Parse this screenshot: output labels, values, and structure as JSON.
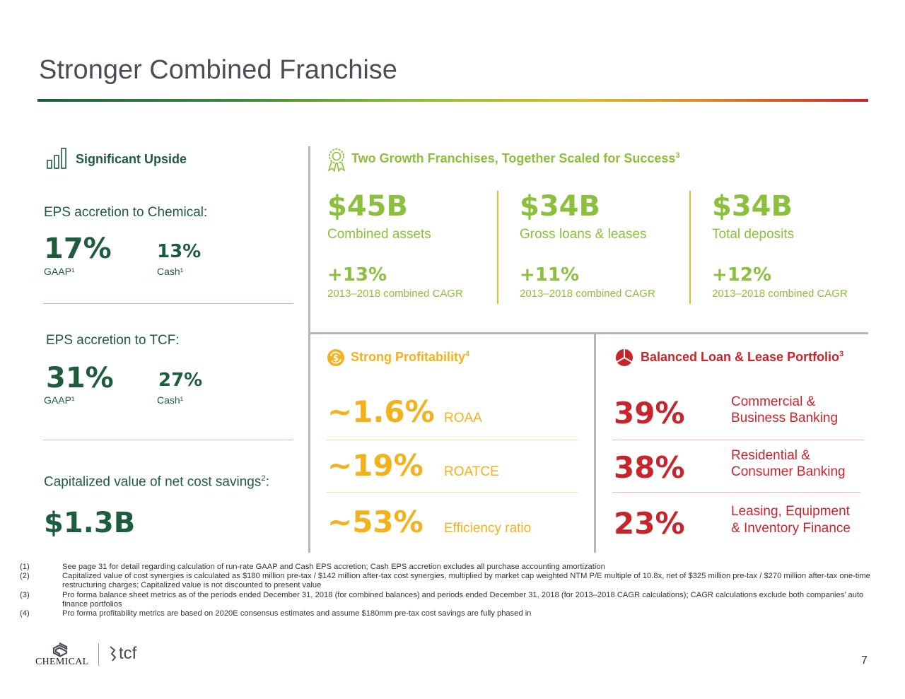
{
  "title": "Stronger Combined Franchise",
  "left": {
    "heading": "Significant Upside",
    "chemical_label": "EPS accretion to Chemical:",
    "chemical_gaap_value": "17%",
    "chemical_gaap_label": "GAAP¹",
    "chemical_cash_value": "13%",
    "chemical_cash_label": "Cash¹",
    "tcf_label": "EPS accretion to TCF:",
    "tcf_gaap_value": "31%",
    "tcf_gaap_label": "GAAP¹",
    "tcf_cash_value": "27%",
    "tcf_cash_label": "Cash¹",
    "cap_label": "Capitalized value of net cost savings",
    "cap_sup": "2",
    "cap_colon": ":",
    "cap_value": "$1.3B"
  },
  "growth": {
    "heading": "Two Growth Franchises, Together Scaled for Success",
    "heading_sup": "3",
    "metrics": [
      {
        "value": "$45B",
        "label": "Combined assets",
        "growth": "+13%",
        "growth_label": "2013–2018 combined CAGR"
      },
      {
        "value": "$34B",
        "label": "Gross loans & leases",
        "growth": "+11%",
        "growth_label": "2013–2018 combined CAGR"
      },
      {
        "value": "$34B",
        "label": "Total deposits",
        "growth": "+12%",
        "growth_label": "2013–2018 combined CAGR"
      }
    ]
  },
  "profitability": {
    "heading": "Strong Profitability",
    "heading_sup": "4",
    "rows": [
      {
        "value": "~1.6%",
        "label": "ROAA"
      },
      {
        "value": "~19%",
        "label": "ROATCE"
      },
      {
        "value": "~53%",
        "label": "Efficiency ratio"
      }
    ]
  },
  "portfolio": {
    "heading": "Balanced Loan & Lease Portfolio",
    "heading_sup": "3",
    "rows": [
      {
        "value": "39%",
        "line1": "Commercial &",
        "line2": "Business Banking"
      },
      {
        "value": "38%",
        "line1": "Residential &",
        "line2": "Consumer Banking"
      },
      {
        "value": "23%",
        "line1": "Leasing, Equipment",
        "line2": "& Inventory Finance"
      }
    ]
  },
  "footnotes": [
    {
      "num": "(1)",
      "text": "See page 31 for detail regarding calculation of run-rate GAAP and Cash EPS accretion; Cash EPS accretion excludes all purchase accounting amortization"
    },
    {
      "num": "(2)",
      "text": "Capitalized value of cost synergies is calculated as $180 million pre-tax / $142 million after-tax cost synergies, multiplied by market cap weighted NTM P/E multiple of 10.8x, net of $325 million pre-tax / $270 million after-tax one-time restructuring charges; Capitalized value is not discounted to present value"
    },
    {
      "num": "(3)",
      "text": "Pro forma balance sheet metrics as of the periods ended December 31, 2018 (for combined balances) and periods ended December 31, 2018 (for 2013–2018 CAGR calculations); CAGR calculations exclude both companies’ auto finance portfolios"
    },
    {
      "num": "(4)",
      "text": "Pro forma profitability metrics are based on 2020E consensus estimates and assume $180mm pre-tax cost savings are fully phased in"
    }
  ],
  "logos": {
    "chemical": "CHEMICAL",
    "tcf": "tcf"
  },
  "page_number": "7",
  "colors": {
    "dark_green": "#1e5c3e",
    "light_green": "#8cbf3b",
    "orange": "#f2b21b",
    "red": "#c8242b",
    "title_gray": "#4b4f54"
  },
  "icons": [
    "bar-chart-icon",
    "award-ribbon-icon",
    "dollar-refresh-icon",
    "pie-chart-icon"
  ]
}
